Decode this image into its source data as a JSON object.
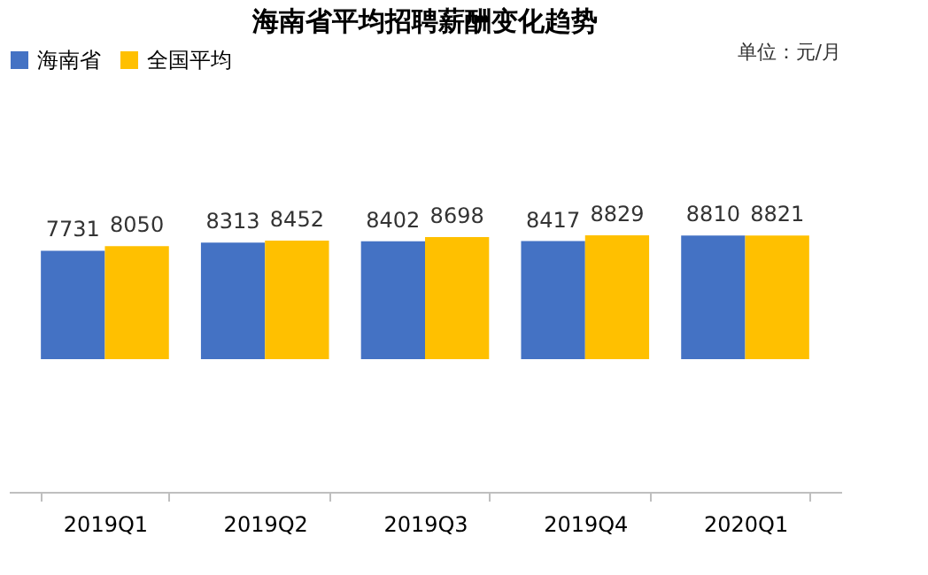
{
  "chart_data": {
    "type": "bar",
    "title": "海南省平均招聘薪酬变化趋势",
    "annotations": [
      "单位：元/月"
    ],
    "categories": [
      "2019Q1",
      "2019Q2",
      "2019Q3",
      "2019Q4",
      "2020Q1"
    ],
    "series": [
      {
        "name": "海南省",
        "color": "#4472c4",
        "values": [
          7731,
          8313,
          8402,
          8417,
          8810
        ]
      },
      {
        "name": "全国平均",
        "color": "#ffc000",
        "values": [
          8050,
          8452,
          8698,
          8829,
          8821
        ]
      }
    ],
    "tick_labels": "x",
    "data_labels": true,
    "grid": false,
    "legend": "top"
  }
}
